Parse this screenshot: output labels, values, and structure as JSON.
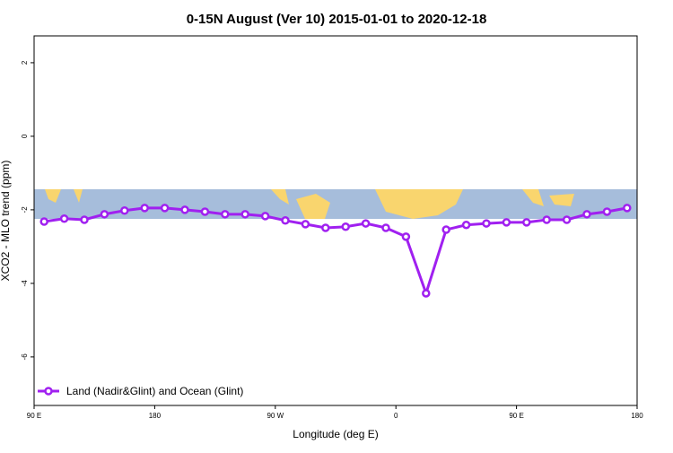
{
  "chart_data": {
    "type": "line",
    "title": "0-15N August (Ver 10)   2015-01-01 to 2020-12-18",
    "x_label": "Longitude (deg E)",
    "y_label": "XCO2 - MLO trend (ppm)",
    "xlim": [
      90,
      540
    ],
    "xticks": [
      {
        "value": 90,
        "label": "90 E"
      },
      {
        "value": 180,
        "label": "180"
      },
      {
        "value": 270,
        "label": "90 W"
      },
      {
        "value": 360,
        "label": "0"
      },
      {
        "value": 450,
        "label": "90 E"
      },
      {
        "value": 540,
        "label": "180"
      }
    ],
    "ylim": [
      -7.32,
      2.73
    ],
    "yticks": [
      2,
      0,
      -2,
      -4,
      -6
    ],
    "legend": "bottom-left",
    "x": [
      97.5,
      112.5,
      127.5,
      142.5,
      157.5,
      172.5,
      187.5,
      202.5,
      217.5,
      232.5,
      247.5,
      262.5,
      277.5,
      292.5,
      307.5,
      322.5,
      337.5,
      352.5,
      367.5,
      382.5,
      397.5,
      412.5,
      427.5,
      442.5,
      457.5,
      472.5,
      487.5,
      502.5,
      517.5,
      532.5
    ],
    "series": [
      {
        "name": "Land (Nadir&Glint) and Ocean (Glint)",
        "color": "#a020f0",
        "values": [
          -2.32,
          -2.24,
          -2.27,
          -2.12,
          -2.02,
          -1.95,
          -1.95,
          -2.0,
          -2.05,
          -2.12,
          -2.12,
          -2.17,
          -2.29,
          -2.39,
          -2.49,
          -2.46,
          -2.37,
          -2.49,
          -2.73,
          -4.27,
          -2.54,
          -2.41,
          -2.37,
          -2.34,
          -2.34,
          -2.27,
          -2.27,
          -2.12,
          -2.05,
          -1.95
        ]
      }
    ]
  }
}
